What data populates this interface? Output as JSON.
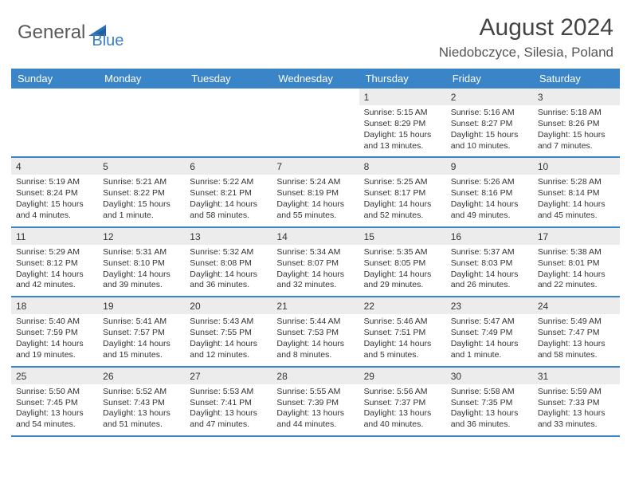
{
  "colors": {
    "header_bg": "#3a84c8",
    "row_divider": "#3a84c8",
    "daynum_bg": "#ececec",
    "logo_gray": "#5a5a5a",
    "logo_blue": "#3a7fc4",
    "text": "#333333"
  },
  "logo": {
    "part1": "General",
    "part2": "Blue"
  },
  "title": "August 2024",
  "location": "Niedobczyce, Silesia, Poland",
  "days_of_week": [
    "Sunday",
    "Monday",
    "Tuesday",
    "Wednesday",
    "Thursday",
    "Friday",
    "Saturday"
  ],
  "weeks": [
    [
      {
        "n": "",
        "sr": "",
        "ss": "",
        "dl": ""
      },
      {
        "n": "",
        "sr": "",
        "ss": "",
        "dl": ""
      },
      {
        "n": "",
        "sr": "",
        "ss": "",
        "dl": ""
      },
      {
        "n": "",
        "sr": "",
        "ss": "",
        "dl": ""
      },
      {
        "n": "1",
        "sr": "Sunrise: 5:15 AM",
        "ss": "Sunset: 8:29 PM",
        "dl": "Daylight: 15 hours and 13 minutes."
      },
      {
        "n": "2",
        "sr": "Sunrise: 5:16 AM",
        "ss": "Sunset: 8:27 PM",
        "dl": "Daylight: 15 hours and 10 minutes."
      },
      {
        "n": "3",
        "sr": "Sunrise: 5:18 AM",
        "ss": "Sunset: 8:26 PM",
        "dl": "Daylight: 15 hours and 7 minutes."
      }
    ],
    [
      {
        "n": "4",
        "sr": "Sunrise: 5:19 AM",
        "ss": "Sunset: 8:24 PM",
        "dl": "Daylight: 15 hours and 4 minutes."
      },
      {
        "n": "5",
        "sr": "Sunrise: 5:21 AM",
        "ss": "Sunset: 8:22 PM",
        "dl": "Daylight: 15 hours and 1 minute."
      },
      {
        "n": "6",
        "sr": "Sunrise: 5:22 AM",
        "ss": "Sunset: 8:21 PM",
        "dl": "Daylight: 14 hours and 58 minutes."
      },
      {
        "n": "7",
        "sr": "Sunrise: 5:24 AM",
        "ss": "Sunset: 8:19 PM",
        "dl": "Daylight: 14 hours and 55 minutes."
      },
      {
        "n": "8",
        "sr": "Sunrise: 5:25 AM",
        "ss": "Sunset: 8:17 PM",
        "dl": "Daylight: 14 hours and 52 minutes."
      },
      {
        "n": "9",
        "sr": "Sunrise: 5:26 AM",
        "ss": "Sunset: 8:16 PM",
        "dl": "Daylight: 14 hours and 49 minutes."
      },
      {
        "n": "10",
        "sr": "Sunrise: 5:28 AM",
        "ss": "Sunset: 8:14 PM",
        "dl": "Daylight: 14 hours and 45 minutes."
      }
    ],
    [
      {
        "n": "11",
        "sr": "Sunrise: 5:29 AM",
        "ss": "Sunset: 8:12 PM",
        "dl": "Daylight: 14 hours and 42 minutes."
      },
      {
        "n": "12",
        "sr": "Sunrise: 5:31 AM",
        "ss": "Sunset: 8:10 PM",
        "dl": "Daylight: 14 hours and 39 minutes."
      },
      {
        "n": "13",
        "sr": "Sunrise: 5:32 AM",
        "ss": "Sunset: 8:08 PM",
        "dl": "Daylight: 14 hours and 36 minutes."
      },
      {
        "n": "14",
        "sr": "Sunrise: 5:34 AM",
        "ss": "Sunset: 8:07 PM",
        "dl": "Daylight: 14 hours and 32 minutes."
      },
      {
        "n": "15",
        "sr": "Sunrise: 5:35 AM",
        "ss": "Sunset: 8:05 PM",
        "dl": "Daylight: 14 hours and 29 minutes."
      },
      {
        "n": "16",
        "sr": "Sunrise: 5:37 AM",
        "ss": "Sunset: 8:03 PM",
        "dl": "Daylight: 14 hours and 26 minutes."
      },
      {
        "n": "17",
        "sr": "Sunrise: 5:38 AM",
        "ss": "Sunset: 8:01 PM",
        "dl": "Daylight: 14 hours and 22 minutes."
      }
    ],
    [
      {
        "n": "18",
        "sr": "Sunrise: 5:40 AM",
        "ss": "Sunset: 7:59 PM",
        "dl": "Daylight: 14 hours and 19 minutes."
      },
      {
        "n": "19",
        "sr": "Sunrise: 5:41 AM",
        "ss": "Sunset: 7:57 PM",
        "dl": "Daylight: 14 hours and 15 minutes."
      },
      {
        "n": "20",
        "sr": "Sunrise: 5:43 AM",
        "ss": "Sunset: 7:55 PM",
        "dl": "Daylight: 14 hours and 12 minutes."
      },
      {
        "n": "21",
        "sr": "Sunrise: 5:44 AM",
        "ss": "Sunset: 7:53 PM",
        "dl": "Daylight: 14 hours and 8 minutes."
      },
      {
        "n": "22",
        "sr": "Sunrise: 5:46 AM",
        "ss": "Sunset: 7:51 PM",
        "dl": "Daylight: 14 hours and 5 minutes."
      },
      {
        "n": "23",
        "sr": "Sunrise: 5:47 AM",
        "ss": "Sunset: 7:49 PM",
        "dl": "Daylight: 14 hours and 1 minute."
      },
      {
        "n": "24",
        "sr": "Sunrise: 5:49 AM",
        "ss": "Sunset: 7:47 PM",
        "dl": "Daylight: 13 hours and 58 minutes."
      }
    ],
    [
      {
        "n": "25",
        "sr": "Sunrise: 5:50 AM",
        "ss": "Sunset: 7:45 PM",
        "dl": "Daylight: 13 hours and 54 minutes."
      },
      {
        "n": "26",
        "sr": "Sunrise: 5:52 AM",
        "ss": "Sunset: 7:43 PM",
        "dl": "Daylight: 13 hours and 51 minutes."
      },
      {
        "n": "27",
        "sr": "Sunrise: 5:53 AM",
        "ss": "Sunset: 7:41 PM",
        "dl": "Daylight: 13 hours and 47 minutes."
      },
      {
        "n": "28",
        "sr": "Sunrise: 5:55 AM",
        "ss": "Sunset: 7:39 PM",
        "dl": "Daylight: 13 hours and 44 minutes."
      },
      {
        "n": "29",
        "sr": "Sunrise: 5:56 AM",
        "ss": "Sunset: 7:37 PM",
        "dl": "Daylight: 13 hours and 40 minutes."
      },
      {
        "n": "30",
        "sr": "Sunrise: 5:58 AM",
        "ss": "Sunset: 7:35 PM",
        "dl": "Daylight: 13 hours and 36 minutes."
      },
      {
        "n": "31",
        "sr": "Sunrise: 5:59 AM",
        "ss": "Sunset: 7:33 PM",
        "dl": "Daylight: 13 hours and 33 minutes."
      }
    ]
  ]
}
